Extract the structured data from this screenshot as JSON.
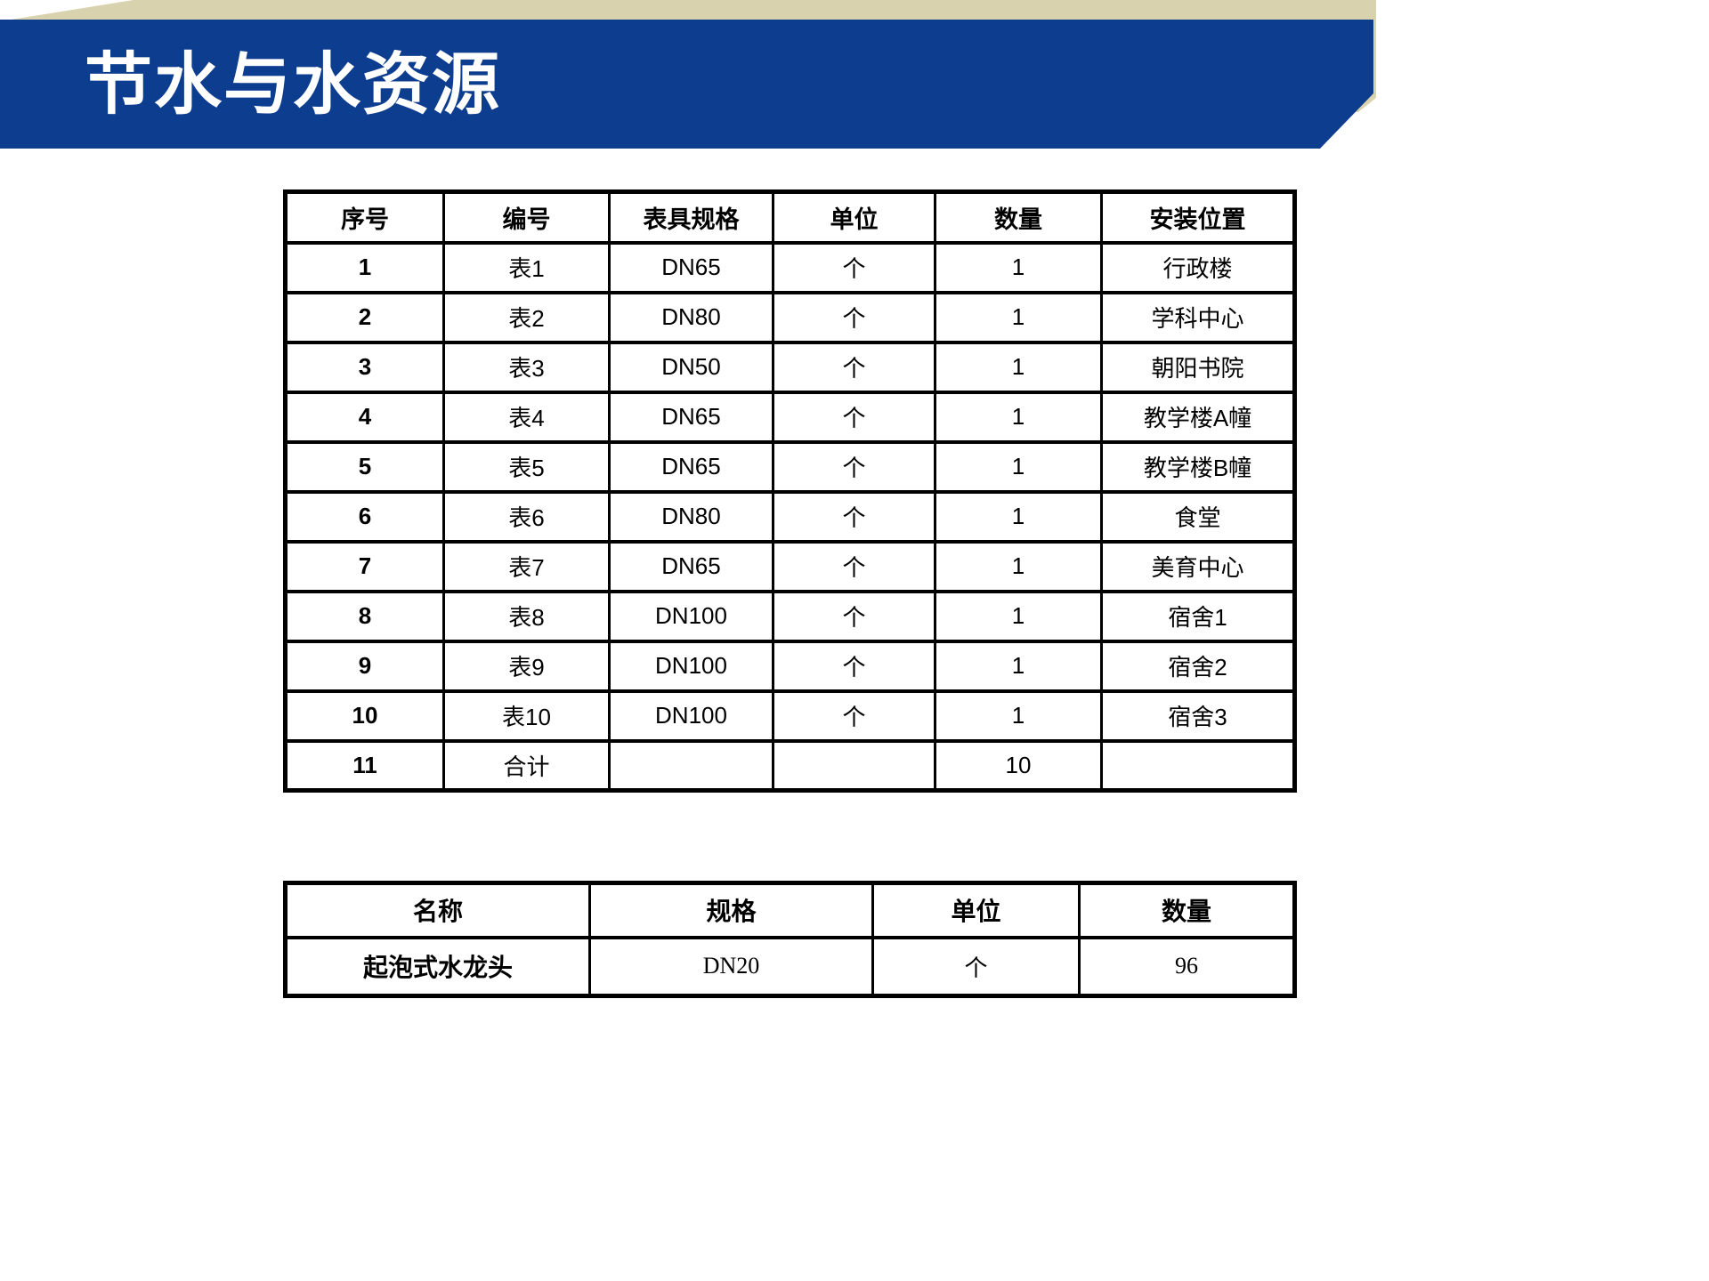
{
  "page": {
    "title": "节水与水资源"
  },
  "theme": {
    "banner_blue": "#0D3D8F",
    "ribbon_tan": "#D9D2AE",
    "title_color": "#FFFFFF",
    "table_border": "#000000"
  },
  "meter_table": {
    "columns": [
      "序号",
      "编号",
      "表具规格",
      "单位",
      "数量",
      "安装位置"
    ],
    "rows": [
      [
        "1",
        "表1",
        "DN65",
        "个",
        "1",
        "行政楼"
      ],
      [
        "2",
        "表2",
        "DN80",
        "个",
        "1",
        "学科中心"
      ],
      [
        "3",
        "表3",
        "DN50",
        "个",
        "1",
        "朝阳书院"
      ],
      [
        "4",
        "表4",
        "DN65",
        "个",
        "1",
        "教学楼A幢"
      ],
      [
        "5",
        "表5",
        "DN65",
        "个",
        "1",
        "教学楼B幢"
      ],
      [
        "6",
        "表6",
        "DN80",
        "个",
        "1",
        "食堂"
      ],
      [
        "7",
        "表7",
        "DN65",
        "个",
        "1",
        "美育中心"
      ],
      [
        "8",
        "表8",
        "DN100",
        "个",
        "1",
        "宿舍1"
      ],
      [
        "9",
        "表9",
        "DN100",
        "个",
        "1",
        "宿舍2"
      ],
      [
        "10",
        "表10",
        "DN100",
        "个",
        "1",
        "宿舍3"
      ],
      [
        "11",
        "合计",
        "",
        "",
        "10",
        ""
      ]
    ]
  },
  "faucet_table": {
    "columns": [
      "名称",
      "规格",
      "单位",
      "数量"
    ],
    "rows": [
      [
        "起泡式水龙头",
        "DN20",
        "个",
        "96"
      ]
    ]
  }
}
